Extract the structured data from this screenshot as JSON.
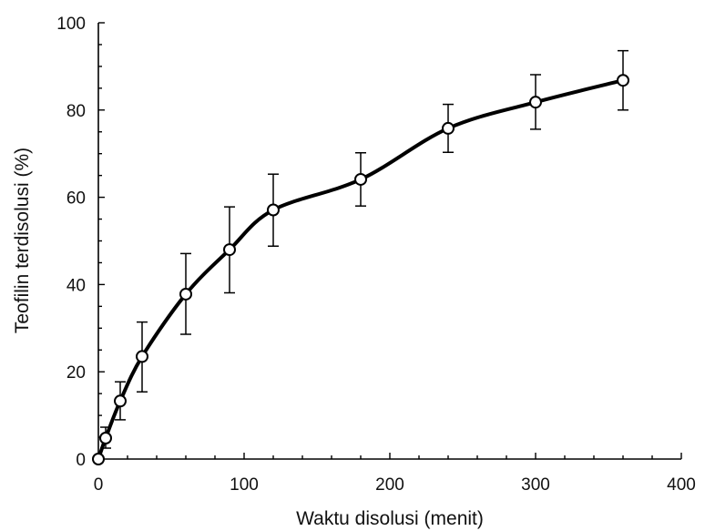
{
  "chart_data": {
    "type": "line",
    "title": "",
    "xlabel": "Waktu disolusi (menit)",
    "ylabel": "Teofilin terdisolusi (%)",
    "xlim": [
      0,
      400
    ],
    "ylim": [
      0,
      100
    ],
    "x_ticks": [
      "0",
      "100",
      "200",
      "300",
      "400"
    ],
    "y_ticks": [
      "0",
      "20",
      "40",
      "60",
      "80",
      "100"
    ],
    "grid": false,
    "line_color": "#000000",
    "marker": "open-circle",
    "series": [
      {
        "x": [
          0,
          5,
          15,
          30,
          60,
          90,
          120,
          180,
          240,
          300,
          360
        ],
        "y": [
          0,
          4.8,
          13.3,
          23.5,
          37.8,
          48,
          57.1,
          64.1,
          75.8,
          81.8,
          86.8
        ],
        "err_low": [
          0,
          2.3,
          4.3,
          8.1,
          9.2,
          9.9,
          8.3,
          6.1,
          5.5,
          6.2,
          6.8
        ],
        "err_high": [
          0,
          2.5,
          4.4,
          7.9,
          9.3,
          9.8,
          8.2,
          6.1,
          5.5,
          6.3,
          6.8
        ]
      }
    ]
  }
}
